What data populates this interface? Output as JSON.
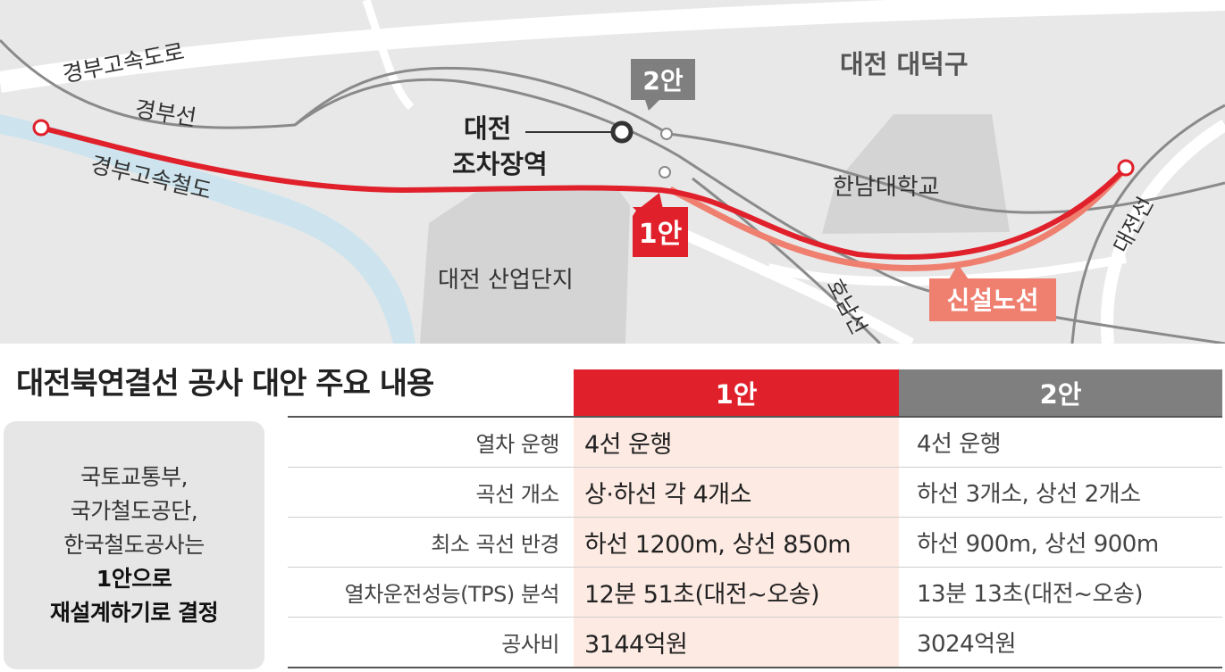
{
  "map": {
    "labels": {
      "gyeongbu_expressway": "경부고속도로",
      "gyeongbu_line": "경부선",
      "gyeongbu_hsr": "경부고속철도",
      "daedeok_gu": "대전 대덕구",
      "hannam_univ": "한남대학교",
      "industrial_complex": "대전 산업단지",
      "honam_line": "호남선",
      "daejeon_line": "대전선",
      "yard_station_line1": "대전",
      "yard_station_line2": "조차장역",
      "option2_tag": "2안",
      "option1_tag": "1안",
      "new_line_tag": "신설노선"
    },
    "colors": {
      "background": "#e8e8e8",
      "river": "#cde4ee",
      "area": "#d4d4d4",
      "rail": "#8a8a8a",
      "option1": "#e0202b",
      "new_line": "#ef8070",
      "option2_tag": "#7f7f7f"
    }
  },
  "summary": {
    "title": "대전북연결선 공사 대안 주요 내용",
    "note": {
      "line1": "국토교통부,",
      "line2": "국가철도공단,",
      "line3": "한국철도공사는",
      "line4": "1안으로",
      "line5": "재설계하기로 결정"
    },
    "table": {
      "headers": [
        "",
        "1안",
        "2안"
      ],
      "rows": [
        {
          "label": "열차 운행",
          "opt1": "4선 운행",
          "opt2": "4선 운행"
        },
        {
          "label": "곡선 개소",
          "opt1": "상·하선 각 4개소",
          "opt2": "하선 3개소, 상선 2개소"
        },
        {
          "label": "최소 곡선 반경",
          "opt1": "하선 1200m, 상선 850m",
          "opt2": "하선 900m, 상선 900m"
        },
        {
          "label": "열차운전성능(TPS) 분석",
          "opt1": "12분 51초(대전~오송)",
          "opt2": "13분 13초(대전~오송)"
        },
        {
          "label": "공사비",
          "opt1": "3144억원",
          "opt2": "3024억원"
        }
      ]
    }
  }
}
